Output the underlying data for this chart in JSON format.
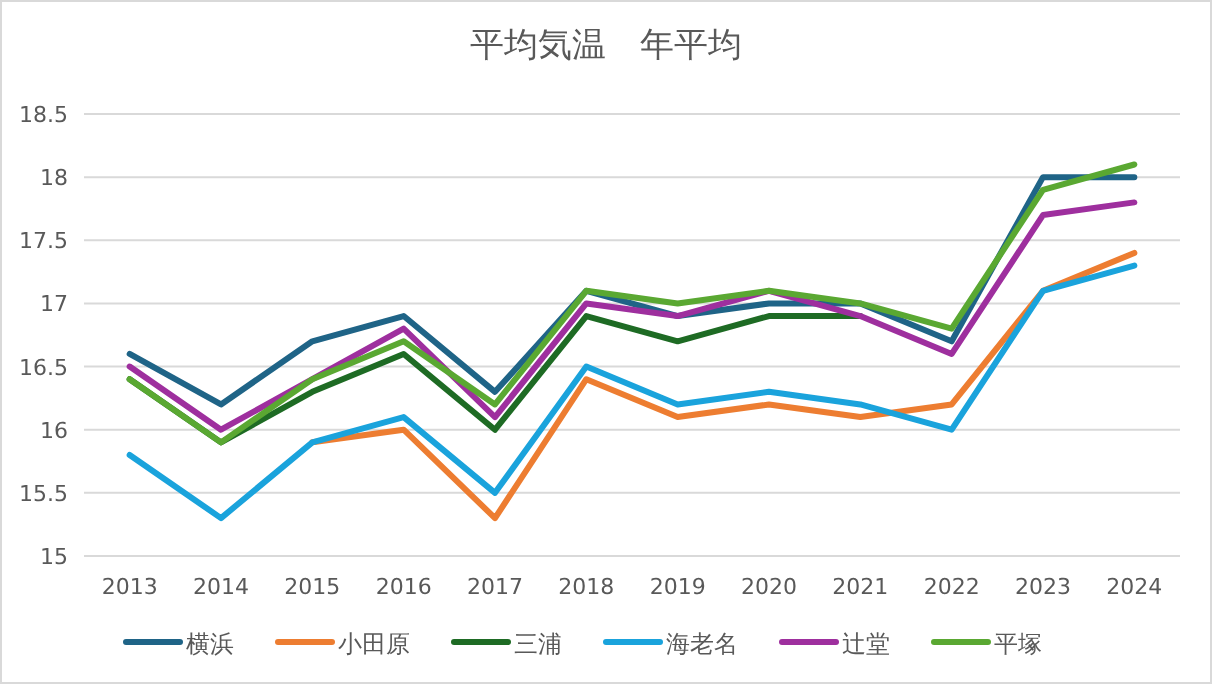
{
  "chart_data": {
    "type": "line",
    "title": "平均気温　年平均",
    "categories": [
      "2013",
      "2014",
      "2015",
      "2016",
      "2017",
      "2018",
      "2019",
      "2020",
      "2021",
      "2022",
      "2023",
      "2024"
    ],
    "series": [
      {
        "name": "横浜",
        "color": "#1f6487",
        "values": [
          16.6,
          16.2,
          16.7,
          16.9,
          16.3,
          17.1,
          16.9,
          17.0,
          17.0,
          16.7,
          18.0,
          18.0
        ]
      },
      {
        "name": "小田原",
        "color": "#ed7d31",
        "values": [
          null,
          null,
          15.9,
          16.0,
          15.3,
          16.4,
          16.1,
          16.2,
          16.1,
          16.2,
          17.1,
          17.4
        ]
      },
      {
        "name": "三浦",
        "color": "#1e6b24",
        "values": [
          16.4,
          15.9,
          16.3,
          16.6,
          16.0,
          16.9,
          16.7,
          16.9,
          16.9,
          null,
          null,
          null
        ]
      },
      {
        "name": "海老名",
        "color": "#1aa3dc",
        "values": [
          15.8,
          15.3,
          15.9,
          16.1,
          15.5,
          16.5,
          16.2,
          16.3,
          16.2,
          16.0,
          17.1,
          17.3
        ]
      },
      {
        "name": "辻堂",
        "color": "#9e2f9e",
        "values": [
          16.5,
          16.0,
          16.4,
          16.8,
          16.1,
          17.0,
          16.9,
          17.1,
          16.9,
          16.6,
          17.7,
          17.8
        ]
      },
      {
        "name": "平塚",
        "color": "#5aa832",
        "values": [
          16.4,
          15.9,
          16.4,
          16.7,
          16.2,
          17.1,
          17.0,
          17.1,
          17.0,
          16.8,
          17.9,
          18.1
        ]
      }
    ],
    "ylim": [
      15,
      18.5
    ],
    "yticks": [
      15,
      15.5,
      16,
      16.5,
      17,
      17.5,
      18,
      18.5
    ],
    "grid": "y",
    "legend": "bottom",
    "marker": "none",
    "line_style": "solid"
  }
}
